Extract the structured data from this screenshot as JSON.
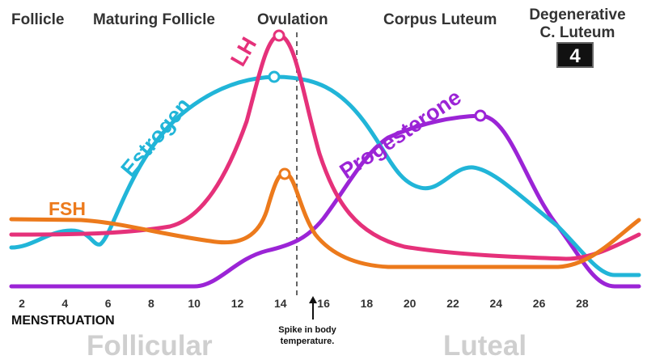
{
  "phases": {
    "follicle": "Follicle",
    "maturing": "Maturing Follicle",
    "ovulation": "Ovulation",
    "corpus_luteum": "Corpus Luteum",
    "degenerative_line1": "Degenerative",
    "degenerative_line2": "C. Luteum"
  },
  "badge": "4",
  "x_ticks": [
    "2",
    "4",
    "6",
    "8",
    "10",
    "12",
    "14",
    "16",
    "18",
    "20",
    "22",
    "24",
    "26",
    "28"
  ],
  "x_axis_label": "MENSTRUATION",
  "annotation": {
    "line1": "Spike in body",
    "line2": "temperature."
  },
  "big_phases": {
    "follicular": "Follicular",
    "luteal": "Luteal"
  },
  "hormones": {
    "estrogen": {
      "label": "Estrogen",
      "color": "#21b5d8"
    },
    "lh": {
      "label": "LH",
      "color": "#e5317a"
    },
    "fsh": {
      "label": "FSH",
      "color": "#ec7a1c"
    },
    "progesterone": {
      "label": "Progesterone",
      "color": "#9b24d6"
    }
  }
}
